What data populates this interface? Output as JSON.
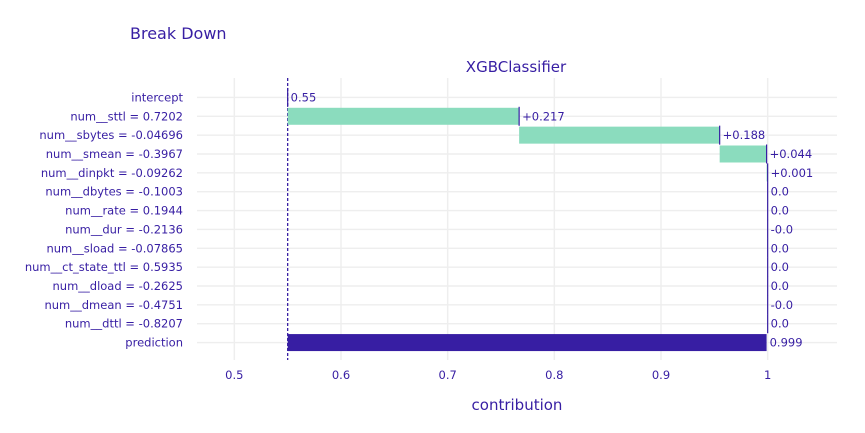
{
  "chart_data": {
    "type": "bar",
    "title": "Break Down",
    "subtitle": "XGBClassifier",
    "xlabel": "contribution",
    "xlim": [
      0.465,
      1.065
    ],
    "xticks": [
      0.5,
      0.6,
      0.7,
      0.8,
      0.9,
      1
    ],
    "xtick_labels": [
      "0.5",
      "0.6",
      "0.7",
      "0.8",
      "0.9",
      "1"
    ],
    "baseline": 0.55,
    "grid": true,
    "colors": {
      "positive": "#8bdcbe",
      "prediction": "#371ea3",
      "text": "#371ea3",
      "baseline_line": "#371ea3",
      "connector": "#371ea3"
    },
    "rows": [
      {
        "label": "intercept",
        "start": 0.55,
        "end": 0.55,
        "value_label": "0.55",
        "kind": "intercept"
      },
      {
        "label": "num__sttl = 0.7202",
        "start": 0.55,
        "end": 0.767,
        "value_label": "+0.217",
        "kind": "positive"
      },
      {
        "label": "num__sbytes = -0.04696",
        "start": 0.767,
        "end": 0.955,
        "value_label": "+0.188",
        "kind": "positive"
      },
      {
        "label": "num__smean = -0.3967",
        "start": 0.955,
        "end": 0.999,
        "value_label": "+0.044",
        "kind": "positive"
      },
      {
        "label": "num__dinpkt = -0.09262",
        "start": 0.999,
        "end": 1.0,
        "value_label": "+0.001",
        "kind": "positive"
      },
      {
        "label": "num__dbytes = -0.1003",
        "start": 1.0,
        "end": 1.0,
        "value_label": "0.0",
        "kind": "zero"
      },
      {
        "label": "num__rate = 0.1944",
        "start": 1.0,
        "end": 1.0,
        "value_label": "0.0",
        "kind": "zero"
      },
      {
        "label": "num__dur = -0.2136",
        "start": 1.0,
        "end": 1.0,
        "value_label": "-0.0",
        "kind": "zero"
      },
      {
        "label": "num__sload = -0.07865",
        "start": 1.0,
        "end": 1.0,
        "value_label": "0.0",
        "kind": "zero"
      },
      {
        "label": "num__ct_state_ttl = 0.5935",
        "start": 1.0,
        "end": 1.0,
        "value_label": "0.0",
        "kind": "zero"
      },
      {
        "label": "num__dload = -0.2625",
        "start": 1.0,
        "end": 1.0,
        "value_label": "0.0",
        "kind": "zero"
      },
      {
        "label": "num__dmean = -0.4751",
        "start": 1.0,
        "end": 1.0,
        "value_label": "-0.0",
        "kind": "zero"
      },
      {
        "label": "num__dttl = -0.8207",
        "start": 1.0,
        "end": 1.0,
        "value_label": "0.0",
        "kind": "zero"
      },
      {
        "label": "prediction",
        "start": 0.55,
        "end": 0.999,
        "value_label": "0.999",
        "kind": "prediction"
      }
    ]
  }
}
